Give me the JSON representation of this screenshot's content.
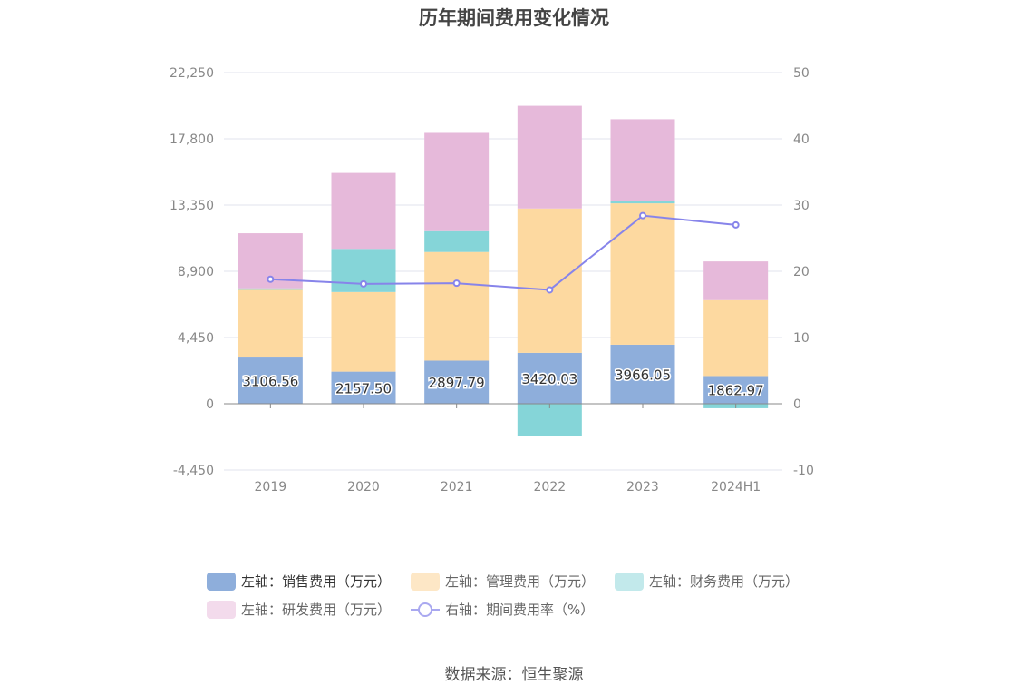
{
  "chart_data": {
    "type": "bar",
    "title": "历年期间费用变化情况",
    "categories": [
      "2019",
      "2020",
      "2021",
      "2022",
      "2023",
      "2024H1"
    ],
    "stacked": true,
    "series": [
      {
        "name": "左轴：销售费用（万元）",
        "axis": "left",
        "color": "#8eaedb",
        "values": [
          3106.56,
          2157.5,
          2897.79,
          3420.03,
          3966.05,
          1862.97
        ]
      },
      {
        "name": "左轴：管理费用（万元）",
        "axis": "left",
        "color": "#fdd9a0",
        "values": [
          4550,
          5350,
          7300,
          9700,
          9500,
          5100
        ]
      },
      {
        "name": "左轴：财务费用（万元）",
        "axis": "left",
        "color": "#85d5d8",
        "values": [
          100,
          2900,
          1400,
          -2150,
          150,
          -300
        ]
      },
      {
        "name": "左轴：研发费用（万元）",
        "axis": "left",
        "color": "#e6b9da",
        "values": [
          3700,
          5100,
          6600,
          6900,
          5500,
          2600
        ]
      },
      {
        "name": "右轴：期间费用率（%）",
        "axis": "right",
        "type": "line",
        "color": "#8784ea",
        "values": [
          18.8,
          18.1,
          18.2,
          17.2,
          28.4,
          27.0
        ]
      }
    ],
    "left_axis": {
      "min": -4450,
      "max": 22250,
      "ticks": [
        "-4,450",
        "0",
        "4,450",
        "8,900",
        "13,350",
        "17,800",
        "22,250"
      ]
    },
    "right_axis": {
      "min": -10,
      "max": 50,
      "ticks": [
        "-10",
        "0",
        "10",
        "20",
        "30",
        "40",
        "50"
      ]
    },
    "grid": true,
    "legend_position": "bottom"
  },
  "legend": {
    "row1": [
      "左轴：销售费用（万元）",
      "左轴：管理费用（万元）",
      "左轴：财务费用（万元）"
    ],
    "row2": [
      "左轴：研发费用（万元）",
      "右轴：期间费用率（%）"
    ]
  },
  "source": "数据来源：恒生聚源"
}
